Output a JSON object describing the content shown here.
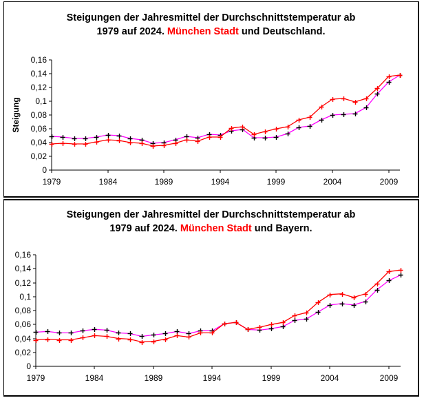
{
  "chart_data": [
    {
      "type": "line",
      "title_line1": "Steigungen der Jahresmittel der Durchschnittstemperatur ab",
      "title_line2_pre": "1979 auf 2024. ",
      "title_line2_highlight": "München Stadt",
      "title_line2_post": " und Deutschland.",
      "xlabel": "",
      "ylabel": "Steigung",
      "ylim": [
        0,
        0.16
      ],
      "y_ticks": [
        "0",
        "0,02",
        "0,04",
        "0,06",
        "0,08",
        "0,1",
        "0,12",
        "0,14",
        "0,16"
      ],
      "x_tick_labels": [
        "1979",
        "1984",
        "1989",
        "1994",
        "1999",
        "2004",
        "2009"
      ],
      "x": [
        1979,
        1980,
        1981,
        1982,
        1983,
        1984,
        1985,
        1986,
        1987,
        1988,
        1989,
        1990,
        1991,
        1992,
        1993,
        1994,
        1995,
        1996,
        1997,
        1998,
        1999,
        2000,
        2001,
        2002,
        2003,
        2004,
        2005,
        2006,
        2007,
        2008,
        2009,
        2010
      ],
      "series": [
        {
          "name": "München Stadt",
          "color": "#ff0000",
          "marker_color": "#ff0000",
          "values": [
            0.038,
            0.039,
            0.038,
            0.038,
            0.041,
            0.044,
            0.043,
            0.04,
            0.039,
            0.035,
            0.036,
            0.039,
            0.044,
            0.042,
            0.048,
            0.048,
            0.061,
            0.063,
            0.052,
            0.056,
            0.06,
            0.063,
            0.073,
            0.077,
            0.092,
            0.103,
            0.104,
            0.099,
            0.104,
            0.119,
            0.136,
            0.138
          ]
        },
        {
          "name": "Deutschland",
          "color": "#ff00ff",
          "marker_color": "#000000",
          "values": [
            0.049,
            0.048,
            0.046,
            0.046,
            0.048,
            0.051,
            0.05,
            0.046,
            0.044,
            0.039,
            0.04,
            0.044,
            0.049,
            0.047,
            0.052,
            0.051,
            0.057,
            0.059,
            0.047,
            0.047,
            0.048,
            0.053,
            0.062,
            0.064,
            0.073,
            0.08,
            0.081,
            0.082,
            0.091,
            0.111,
            0.128,
            0.138
          ]
        }
      ],
      "grid": false,
      "legend": "none"
    },
    {
      "type": "line",
      "title_line1": "Steigungen der Jahresmittel der Durchschnittstemperatur ab",
      "title_line2_pre": "1979 auf 2024. ",
      "title_line2_highlight": "München Stadt",
      "title_line2_post": " und Bayern.",
      "xlabel": "",
      "ylabel": "",
      "ylim": [
        0,
        0.16
      ],
      "y_ticks": [
        "0",
        "0,02",
        "0,04",
        "0,06",
        "0,08",
        "0,1",
        "0,12",
        "0,14",
        "0,16"
      ],
      "x_tick_labels": [
        "1979",
        "1984",
        "1989",
        "1994",
        "1999",
        "2004",
        "2009"
      ],
      "x": [
        1979,
        1980,
        1981,
        1982,
        1983,
        1984,
        1985,
        1986,
        1987,
        1988,
        1989,
        1990,
        1991,
        1992,
        1993,
        1994,
        1995,
        1996,
        1997,
        1998,
        1999,
        2000,
        2001,
        2002,
        2003,
        2004,
        2005,
        2006,
        2007,
        2008,
        2009,
        2010
      ],
      "series": [
        {
          "name": "München Stadt",
          "color": "#ff0000",
          "marker_color": "#ff0000",
          "values": [
            0.038,
            0.039,
            0.038,
            0.038,
            0.041,
            0.044,
            0.043,
            0.04,
            0.039,
            0.035,
            0.036,
            0.039,
            0.044,
            0.042,
            0.048,
            0.048,
            0.061,
            0.063,
            0.053,
            0.056,
            0.06,
            0.063,
            0.073,
            0.077,
            0.092,
            0.103,
            0.104,
            0.099,
            0.104,
            0.119,
            0.136,
            0.138
          ]
        },
        {
          "name": "Bayern",
          "color": "#ff00ff",
          "marker_color": "#000000",
          "values": [
            0.049,
            0.05,
            0.048,
            0.048,
            0.051,
            0.053,
            0.052,
            0.048,
            0.047,
            0.043,
            0.045,
            0.047,
            0.05,
            0.047,
            0.051,
            0.051,
            0.061,
            0.063,
            0.053,
            0.052,
            0.054,
            0.057,
            0.066,
            0.068,
            0.078,
            0.088,
            0.09,
            0.088,
            0.093,
            0.11,
            0.123,
            0.131
          ]
        }
      ],
      "grid": false,
      "legend": "none"
    }
  ]
}
